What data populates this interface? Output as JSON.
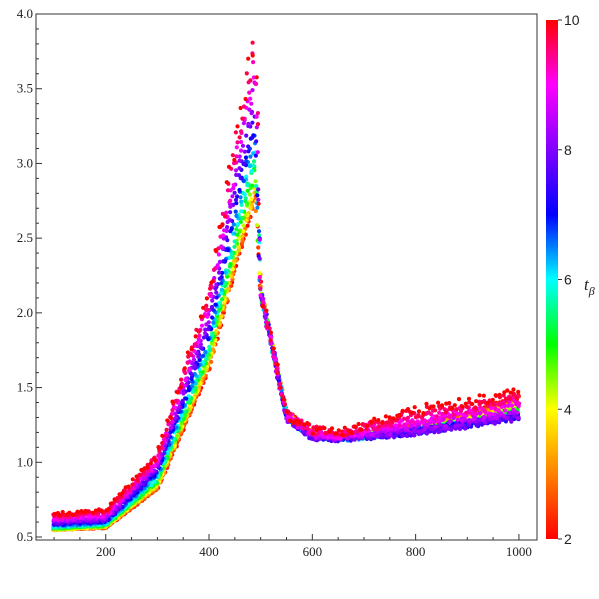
{
  "chart_data": {
    "type": "scatter",
    "title": "",
    "xlabel": "",
    "ylabel": "",
    "xlim": [
      65,
      1035
    ],
    "ylim": [
      0.48,
      4.0
    ],
    "x_ticks": [
      {
        "value": 200,
        "label": "200"
      },
      {
        "value": 400,
        "label": "400"
      },
      {
        "value": 600,
        "label": "600"
      },
      {
        "value": 800,
        "label": "800"
      },
      {
        "value": 1000,
        "label": "1000"
      }
    ],
    "y_ticks": [
      {
        "value": 0.5,
        "label": "0.5"
      },
      {
        "value": 1.0,
        "label": "1.0"
      },
      {
        "value": 1.5,
        "label": "1.5"
      },
      {
        "value": 2.0,
        "label": "2.0"
      },
      {
        "value": 2.5,
        "label": "2.5"
      },
      {
        "value": 3.0,
        "label": "3.0"
      },
      {
        "value": 3.5,
        "label": "3.5"
      },
      {
        "value": 4.0,
        "label": "4.0"
      }
    ],
    "colorbar": {
      "variable": "t_β",
      "title_main": "t",
      "title_sub": "β",
      "min": 2,
      "max": 10,
      "ticks": [
        {
          "value": 2,
          "label": "2"
        },
        {
          "value": 4,
          "label": "4"
        },
        {
          "value": 6,
          "label": "6"
        },
        {
          "value": 8,
          "label": "8"
        },
        {
          "value": 10,
          "label": "10"
        }
      ],
      "colors": [
        "#ff0000",
        "#ff8000",
        "#ffff00",
        "#00ff00",
        "#00ffff",
        "#0000ff",
        "#8000ff",
        "#ff00ff",
        "#ff0000"
      ]
    },
    "x_range": [
      100,
      1000
    ],
    "series": [
      {
        "t_beta": 2,
        "x": [
          100,
          200,
          300,
          400,
          460,
          490,
          500,
          550,
          600,
          650,
          700,
          800,
          900,
          1000
        ],
        "y": [
          0.55,
          0.56,
          0.82,
          1.62,
          2.4,
          2.75,
          2.15,
          1.35,
          1.2,
          1.17,
          1.19,
          1.25,
          1.33,
          1.45
        ]
      },
      {
        "t_beta": 4,
        "x": [
          100,
          200,
          300,
          400,
          460,
          490,
          500,
          550,
          600,
          650,
          700,
          800,
          900,
          1000
        ],
        "y": [
          0.55,
          0.57,
          0.85,
          1.68,
          2.5,
          2.85,
          2.15,
          1.32,
          1.18,
          1.16,
          1.18,
          1.22,
          1.28,
          1.37
        ]
      },
      {
        "t_beta": 6,
        "x": [
          100,
          200,
          300,
          400,
          460,
          490,
          500,
          550,
          600,
          650,
          700,
          800,
          900,
          1000
        ],
        "y": [
          0.57,
          0.59,
          0.9,
          1.78,
          2.7,
          3.1,
          2.15,
          1.3,
          1.17,
          1.16,
          1.17,
          1.21,
          1.26,
          1.32
        ]
      },
      {
        "t_beta": 8,
        "x": [
          100,
          200,
          300,
          400,
          460,
          490,
          500,
          550,
          600,
          650,
          700,
          800,
          900,
          1000
        ],
        "y": [
          0.6,
          0.62,
          0.97,
          1.95,
          3.0,
          3.45,
          2.15,
          1.3,
          1.17,
          1.16,
          1.17,
          1.2,
          1.25,
          1.3
        ]
      },
      {
        "t_beta": 10,
        "x": [
          100,
          200,
          300,
          400,
          460,
          490,
          500,
          550,
          600,
          650,
          700,
          800,
          900,
          1000
        ],
        "y": [
          0.65,
          0.68,
          1.05,
          2.15,
          3.3,
          3.9,
          2.15,
          1.32,
          1.22,
          1.2,
          1.25,
          1.35,
          1.4,
          1.48
        ]
      }
    ]
  }
}
